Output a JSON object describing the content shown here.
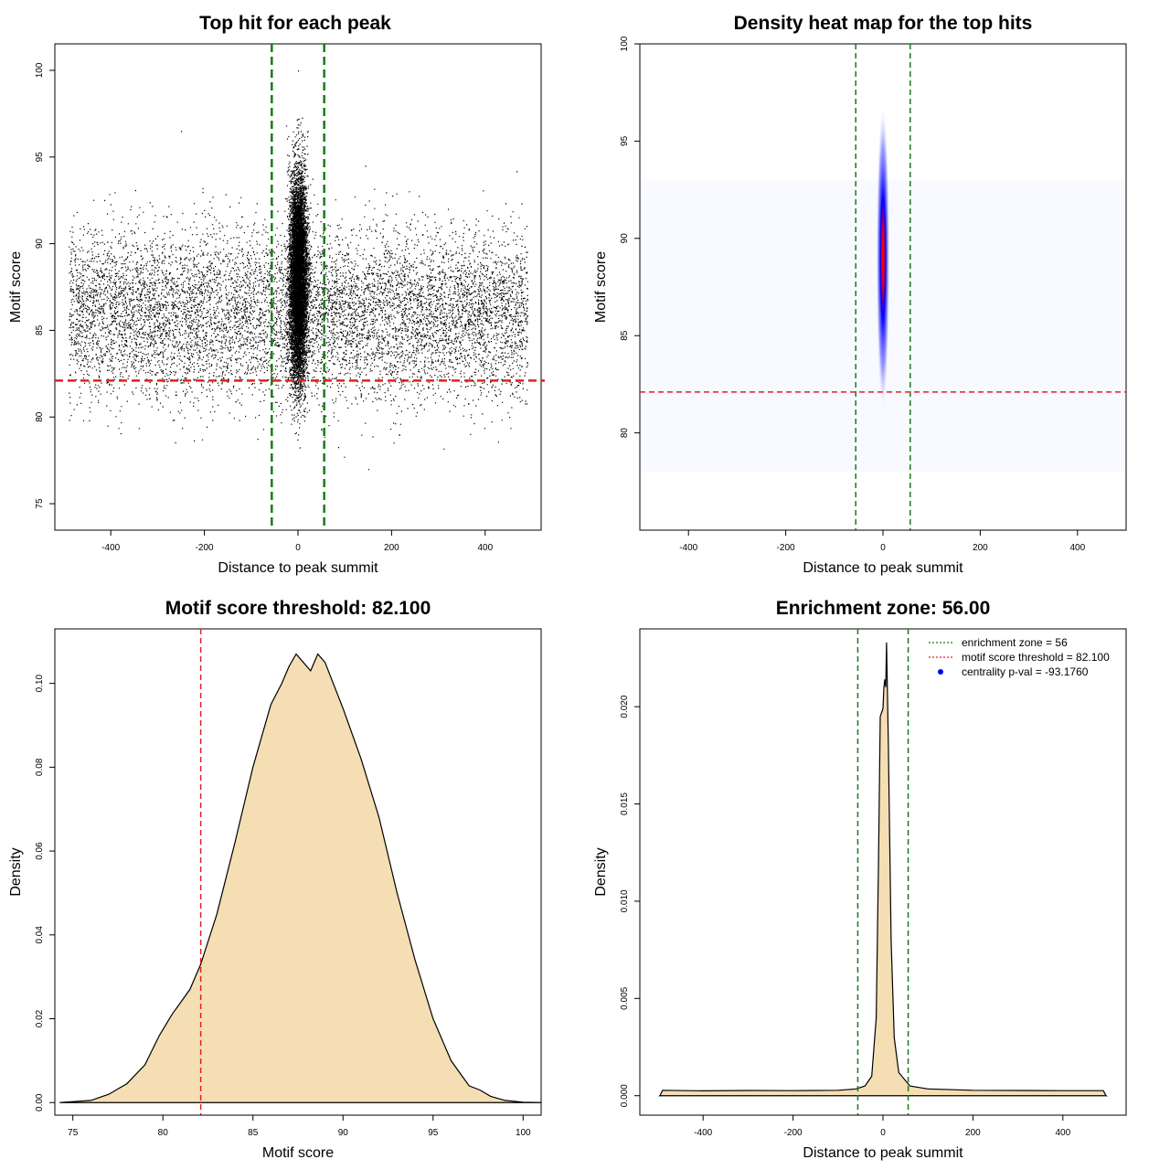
{
  "chart_data": [
    {
      "type": "scatter",
      "title": "Top hit for each peak",
      "xlabel": "Distance to peak summit",
      "ylabel": "Motif score",
      "xlim": [
        -500,
        500
      ],
      "ylim": [
        74,
        101
      ],
      "xticks": [
        -400,
        -200,
        0,
        200,
        400
      ],
      "yticks": [
        75,
        80,
        85,
        90,
        95,
        100
      ],
      "vlines": [
        -56,
        56
      ],
      "hline": 82.1,
      "colors": {
        "points": "#000000",
        "vline": "#1a7a1a",
        "hline": "#e02020"
      },
      "points_sample": {
        "x": [
          -480,
          -300,
          -150,
          -60,
          -30,
          -10,
          0,
          5,
          10,
          20,
          40,
          80,
          200,
          350,
          480,
          0,
          0,
          -5,
          3,
          -250,
          150
        ],
        "y": [
          87,
          85,
          84,
          88,
          90,
          86,
          93,
          97,
          89,
          84,
          82,
          86,
          83,
          85,
          88,
          100,
          79,
          91,
          95,
          96.5,
          77
        ]
      }
    },
    {
      "type": "heatmap",
      "title": "Density heat map for the top hits",
      "xlabel": "Distance to peak summit",
      "ylabel": "Motif score",
      "xlim": [
        -500,
        500
      ],
      "ylim": [
        75,
        100
      ],
      "xticks": [
        -400,
        -200,
        0,
        200,
        400
      ],
      "yticks": [
        80,
        85,
        90,
        95,
        100
      ],
      "vlines": [
        -56,
        56
      ],
      "hline": 82.1,
      "hotspot": {
        "x_center": 0,
        "y_center": 89,
        "x_halfwidth": 14,
        "y_halfwidth": 8
      },
      "colors": {
        "low": "#ffffff",
        "mid": "#0000ff",
        "high": "#ff0000",
        "vline": "#1a7a1a",
        "hline": "#e02020"
      }
    },
    {
      "type": "area",
      "title": "Motif score threshold: 82.100",
      "xlabel": "Motif score",
      "ylabel": "Density",
      "xlim": [
        74,
        101
      ],
      "ylim": [
        -0.003,
        0.113
      ],
      "xticks": [
        75,
        80,
        85,
        90,
        95,
        100
      ],
      "yticks": [
        0.0,
        0.02,
        0.04,
        0.06,
        0.08,
        0.1
      ],
      "ytick_labels": [
        "0.00",
        "0.02",
        "0.04",
        "0.06",
        "0.08",
        "0.10"
      ],
      "vline": 82.1,
      "x": [
        74.3,
        76,
        77,
        78,
        79,
        79.8,
        80.5,
        81.5,
        82.1,
        83,
        84,
        85,
        86,
        86.6,
        87,
        87.4,
        87.8,
        88.2,
        88.6,
        89,
        90,
        91,
        92,
        93,
        94,
        95,
        96,
        97,
        97.6,
        98.2,
        99,
        100,
        101
      ],
      "y": [
        0.0,
        0.0005,
        0.002,
        0.0045,
        0.009,
        0.016,
        0.021,
        0.027,
        0.033,
        0.045,
        0.062,
        0.08,
        0.095,
        0.1,
        0.104,
        0.107,
        0.105,
        0.103,
        0.107,
        0.105,
        0.094,
        0.082,
        0.068,
        0.05,
        0.034,
        0.02,
        0.01,
        0.004,
        0.003,
        0.0015,
        0.0005,
        0.0001,
        0.0
      ]
    },
    {
      "type": "area",
      "title": "Enrichment zone: 56.00",
      "xlabel": "Distance to peak summit",
      "ylabel": "Density",
      "xlim": [
        -500,
        500
      ],
      "ylim": [
        -0.001,
        0.024
      ],
      "xticks": [
        -400,
        -200,
        0,
        200,
        400
      ],
      "yticks": [
        0.0,
        0.005,
        0.01,
        0.015,
        0.02
      ],
      "ytick_labels": [
        "0.000",
        "0.005",
        "0.010",
        "0.015",
        "0.020"
      ],
      "vlines": [
        -56,
        56
      ],
      "x": [
        -496,
        -490,
        -400,
        -300,
        -200,
        -100,
        -60,
        -40,
        -25,
        -15,
        -10,
        -6,
        -3,
        0,
        2,
        4,
        6,
        8,
        12,
        18,
        25,
        35,
        60,
        100,
        200,
        300,
        400,
        490,
        496
      ],
      "y": [
        0.0,
        0.00028,
        0.00025,
        0.00027,
        0.00026,
        0.00028,
        0.00035,
        0.0005,
        0.001,
        0.004,
        0.012,
        0.0195,
        0.0197,
        0.0199,
        0.021,
        0.0214,
        0.021,
        0.0233,
        0.018,
        0.008,
        0.003,
        0.0012,
        0.0005,
        0.00035,
        0.00028,
        0.00027,
        0.00026,
        0.00026,
        0.0
      ],
      "legend": {
        "placement": "top-right",
        "items": [
          {
            "label": "enrichment zone = 56",
            "style": "dotted",
            "color": "#1a7a1a"
          },
          {
            "label": "motif score threshold = 82.100",
            "style": "dotted",
            "color": "#e02020"
          },
          {
            "label": "centrality p-val = -93.1760",
            "style": "point",
            "color": "#0000ff"
          }
        ]
      }
    }
  ],
  "colors": {
    "fill": "#f5deb3",
    "axis": "#000000",
    "vline": "#1a7a1a",
    "hline": "#e02020"
  }
}
